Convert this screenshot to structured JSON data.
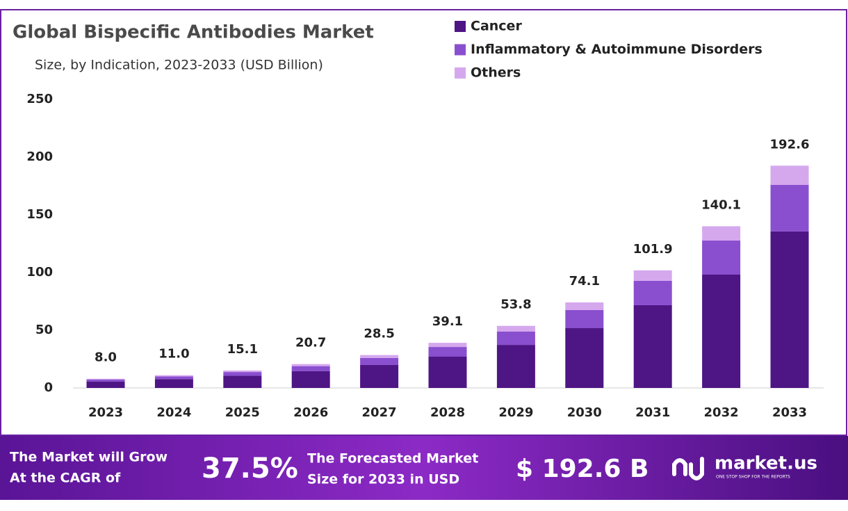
{
  "chart_data": {
    "type": "stacked-bar",
    "title": "Global Bispecific Antibodies Market",
    "subtitle": "Size, by Indication, 2023-2033 (USD Billion)",
    "categories": [
      "2023",
      "2024",
      "2025",
      "2026",
      "2027",
      "2028",
      "2029",
      "2030",
      "2031",
      "2032",
      "2033"
    ],
    "series": [
      {
        "name": "Cancer",
        "color": "#4e1585",
        "values": [
          5.6,
          7.7,
          10.6,
          14.5,
          19.9,
          27.1,
          37.3,
          51.8,
          71.7,
          98.2,
          135.6
        ]
      },
      {
        "name": "Inflammatory & Autoimmune Disorders",
        "color": "#8a4fcf",
        "values": [
          1.7,
          2.3,
          3.2,
          4.4,
          6.1,
          8.4,
          11.5,
          15.7,
          21.1,
          29.5,
          40.3
        ]
      },
      {
        "name": "Others",
        "color": "#d5a8ee",
        "values": [
          0.7,
          1.0,
          1.3,
          1.8,
          2.5,
          3.6,
          5.0,
          6.6,
          9.1,
          12.4,
          16.7
        ]
      }
    ],
    "totals": {
      "values": [
        8,
        11,
        15.1,
        20.7,
        28.5,
        39.1,
        53.8,
        74.1,
        101.9,
        140.1,
        192.6
      ],
      "value_labels": [
        "8.0",
        "11.0",
        "15.1",
        "20.7",
        "28.5",
        "39.1",
        "53.8",
        "74.1",
        "101.9",
        "140.1",
        "192.6"
      ]
    },
    "ylim": [
      0,
      250
    ],
    "yticks": [
      0,
      50,
      100,
      150,
      200,
      250
    ],
    "grid": false,
    "legend": "top-right"
  },
  "banner": {
    "cagr_label": [
      "The Market will Grow",
      "At the CAGR of"
    ],
    "cagr": "37.5%",
    "forecast_label": [
      "The Forecasted Market",
      "Size for 2033 in USD"
    ],
    "forecast": "$ 192.6 B",
    "logo": "market.us",
    "tagline": "ONE STOP SHOP FOR THE REPORTS"
  }
}
